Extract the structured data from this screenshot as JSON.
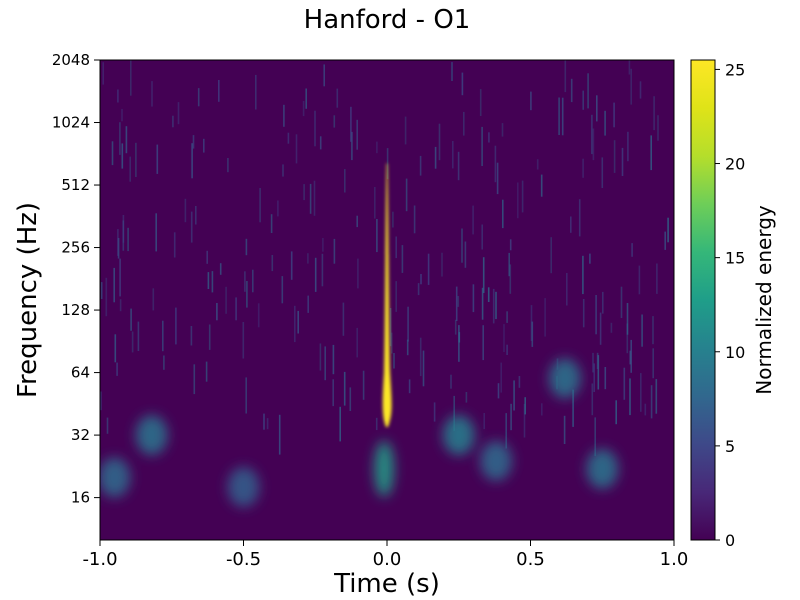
{
  "chart_data": {
    "type": "heatmap",
    "title": "Hanford - O1",
    "xlabel": "Time (s)",
    "ylabel": "Frequency (Hz)",
    "xlim": [
      -1.0,
      1.0
    ],
    "ylim": [
      10,
      2048
    ],
    "yscale": "log2",
    "x_ticks": [
      -1.0,
      -0.5,
      0.0,
      0.5,
      1.0
    ],
    "x_tick_labels": [
      "-1.0",
      "-0.5",
      "0.0",
      "0.5",
      "1.0"
    ],
    "y_ticks": [
      16,
      32,
      64,
      128,
      256,
      512,
      1024,
      2048
    ],
    "y_tick_labels": [
      "16",
      "32",
      "64",
      "128",
      "256",
      "512",
      "1024",
      "2048"
    ],
    "colormap": "viridis",
    "colorbar": {
      "label": "Normalized energy",
      "range": [
        0,
        25.5
      ],
      "ticks": [
        0,
        5,
        10,
        15,
        20,
        25
      ],
      "tick_labels": [
        "0",
        "5",
        "10",
        "15",
        "20",
        "25"
      ]
    },
    "grid": false,
    "features": [
      {
        "t": 0.0,
        "f_low": 35,
        "f_high": 650,
        "energy": 25.5
      },
      {
        "t": -0.01,
        "f": 22,
        "energy": 13
      },
      {
        "t": -0.82,
        "f": 32,
        "energy": 9
      },
      {
        "t": -0.95,
        "f": 20,
        "energy": 8
      },
      {
        "t": -0.5,
        "f": 18,
        "energy": 7
      },
      {
        "t": 0.25,
        "f": 32,
        "energy": 10
      },
      {
        "t": 0.38,
        "f": 24,
        "energy": 8
      },
      {
        "t": 0.62,
        "f": 60,
        "energy": 9
      },
      {
        "t": 0.75,
        "f": 22,
        "energy": 9
      }
    ]
  }
}
